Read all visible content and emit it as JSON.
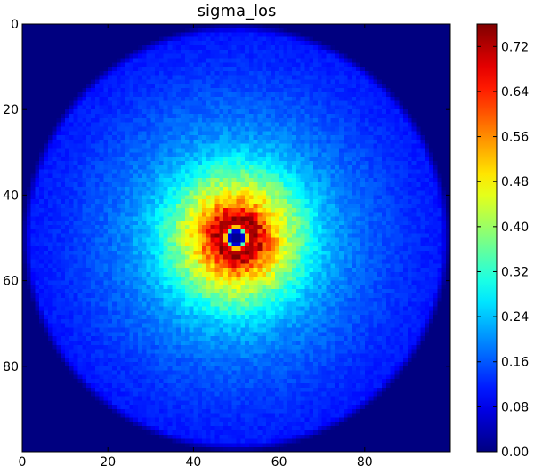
{
  "chart_data": {
    "type": "heatmap",
    "title": "sigma_los",
    "xlabel": "",
    "ylabel": "",
    "grid_size": [
      100,
      100
    ],
    "xlim": [
      0,
      100
    ],
    "ylim": [
      0,
      100
    ],
    "y_inverted": true,
    "x_ticks": [
      0,
      20,
      40,
      60,
      80
    ],
    "y_ticks": [
      0,
      20,
      40,
      60,
      80
    ],
    "colormap": "jet",
    "colorbar": {
      "vmin": 0.0,
      "vmax": 0.76,
      "ticks": [
        0.0,
        0.08,
        0.16,
        0.24,
        0.32,
        0.4,
        0.48,
        0.56,
        0.64,
        0.72
      ],
      "tick_labels": [
        "0.00",
        "0.08",
        "0.16",
        "0.24",
        "0.32",
        "0.40",
        "0.48",
        "0.56",
        "0.64",
        "0.72"
      ]
    },
    "center": [
      50,
      50
    ],
    "radial_profile": {
      "radius": [
        0,
        1.5,
        2,
        3,
        4,
        6,
        8,
        10,
        12,
        14,
        17,
        20,
        25,
        30,
        35,
        40,
        44,
        48,
        50
      ],
      "value": [
        0.01,
        0.02,
        0.3,
        0.7,
        0.74,
        0.66,
        0.56,
        0.49,
        0.43,
        0.38,
        0.31,
        0.25,
        0.2,
        0.17,
        0.15,
        0.13,
        0.12,
        0.11,
        0.0
      ]
    },
    "background_value": 0.0
  }
}
